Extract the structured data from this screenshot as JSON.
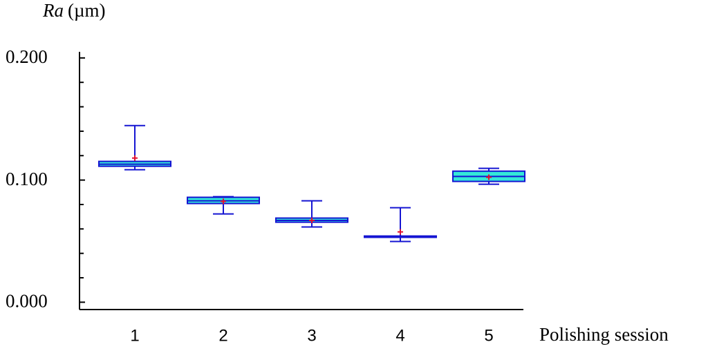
{
  "chart_data": {
    "type": "box",
    "y_label_var": "Ra",
    "y_label_unit": "(µm)",
    "x_label": "Polishing session",
    "categories": [
      "1",
      "2",
      "3",
      "4",
      "5"
    ],
    "boxes": [
      {
        "min": 0.1085,
        "q1": 0.1113,
        "median": 0.113,
        "q3": 0.1153,
        "max": 0.1446,
        "mean": 0.118
      },
      {
        "min": 0.0723,
        "q1": 0.0808,
        "median": 0.083,
        "q3": 0.0859,
        "max": 0.0864,
        "mean": 0.0825
      },
      {
        "min": 0.0616,
        "q1": 0.0655,
        "median": 0.067,
        "q3": 0.0689,
        "max": 0.083,
        "mean": 0.067
      },
      {
        "min": 0.0497,
        "q1": 0.0531,
        "median": 0.0537,
        "q3": 0.0542,
        "max": 0.0774,
        "mean": 0.0576
      },
      {
        "min": 0.0966,
        "q1": 0.0989,
        "median": 0.103,
        "q3": 0.1073,
        "max": 0.1096,
        "mean": 0.1023
      }
    ],
    "box_color": "#33e8d8",
    "line_color": "#1414d2",
    "mean_color": "#e01030",
    "ylim": [
      -0.006,
      0.205
    ],
    "yticks": [
      {
        "value": 0,
        "label": "0.000"
      },
      {
        "value": 0.1,
        "label": "0.100"
      },
      {
        "value": 0.2,
        "label": "0.200"
      }
    ],
    "minor_yticks": [
      0.02,
      0.04,
      0.06,
      0.08,
      0.12,
      0.14,
      0.16,
      0.18
    ]
  }
}
